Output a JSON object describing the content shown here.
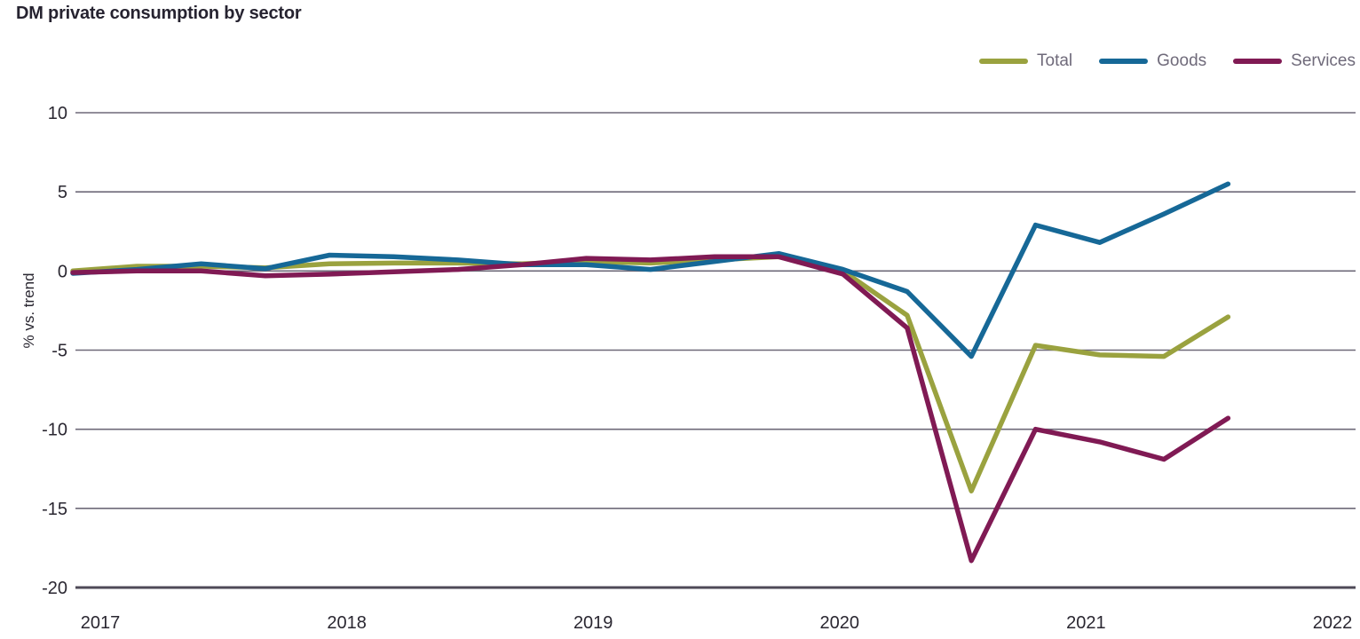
{
  "header": {
    "title": "DM private consumption by sector"
  },
  "chart_data": {
    "type": "line",
    "title": "DM private consumption by sector",
    "xlabel": "",
    "ylabel": "% vs. trend",
    "ylim": [
      -20,
      10
    ],
    "yticks": [
      10,
      5,
      0,
      -5,
      -10,
      -15,
      -20
    ],
    "xticks": [
      "2017",
      "2018",
      "2019",
      "2020",
      "2021",
      "2022"
    ],
    "grid": true,
    "legend_position": "top-right",
    "categories": [
      "2017Q1",
      "2017Q2",
      "2017Q3",
      "2017Q4",
      "2018Q1",
      "2018Q2",
      "2018Q3",
      "2018Q4",
      "2019Q1",
      "2019Q2",
      "2019Q3",
      "2019Q4",
      "2020Q1",
      "2020Q2",
      "2020Q3",
      "2020Q4",
      "2021Q1",
      "2021Q2",
      "2021Q3"
    ],
    "series": [
      {
        "name": "Total",
        "color": "#9AA23F",
        "values": [
          0.0,
          0.3,
          0.3,
          0.2,
          0.45,
          0.5,
          0.5,
          0.45,
          0.6,
          0.5,
          0.7,
          0.9,
          0.0,
          -2.8,
          -13.9,
          -4.7,
          -5.3,
          -5.4,
          -2.9
        ]
      },
      {
        "name": "Goods",
        "color": "#166897",
        "values": [
          -0.15,
          0.1,
          0.45,
          0.15,
          1.0,
          0.9,
          0.7,
          0.4,
          0.4,
          0.1,
          0.6,
          1.1,
          0.1,
          -1.3,
          -5.4,
          2.9,
          1.8,
          3.6,
          5.5
        ]
      },
      {
        "name": "Services",
        "color": "#801A54",
        "values": [
          -0.1,
          0.0,
          0.0,
          -0.3,
          -0.2,
          -0.05,
          0.1,
          0.4,
          0.8,
          0.7,
          0.9,
          0.9,
          -0.2,
          -3.6,
          -18.3,
          -10.0,
          -10.8,
          -11.9,
          -9.3
        ]
      }
    ]
  },
  "colors": {
    "background": "#FFFFFF",
    "title_text": "#262330",
    "tick_text": "#2A2731",
    "legend_text": "#6F6A7A",
    "gridline": "#6E6978",
    "axisline": "#4E4A57"
  }
}
